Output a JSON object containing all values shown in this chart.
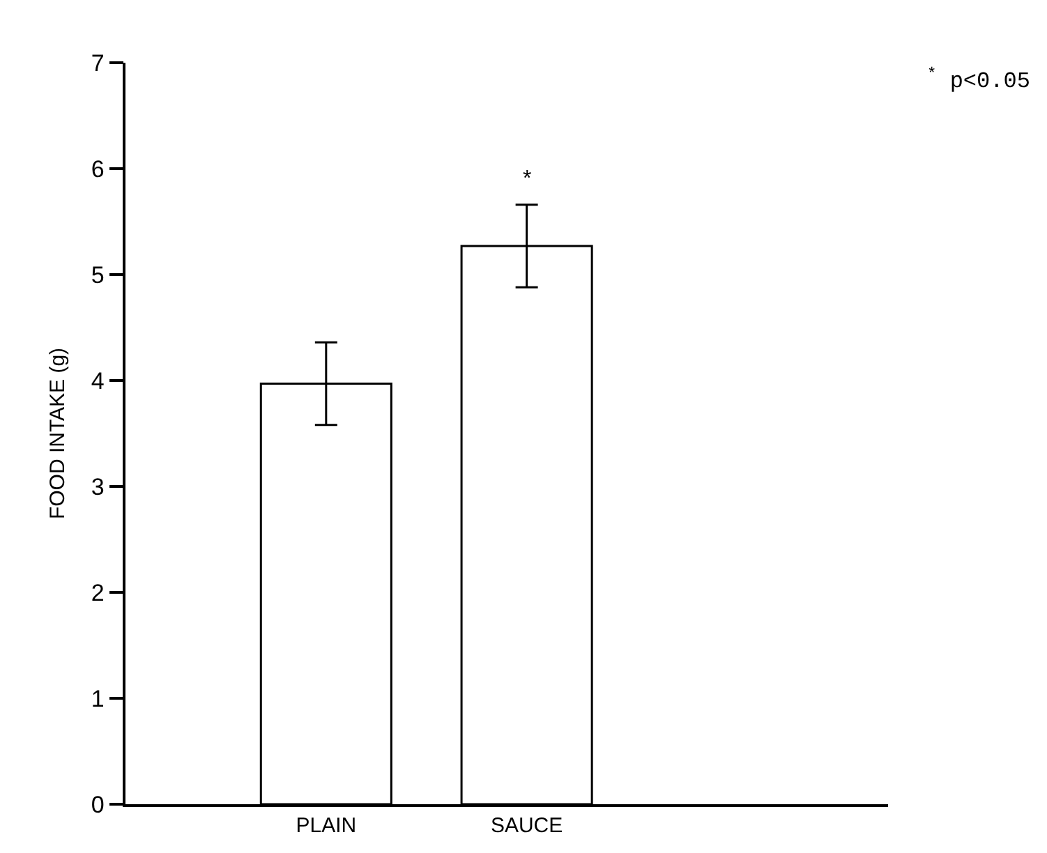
{
  "chart_data": {
    "type": "bar",
    "ylabel": "FOOD INTAKE (g)",
    "categories": [
      "PLAIN",
      "SAUCE"
    ],
    "series": [
      {
        "color": "#ffffff",
        "values": [
          3.97,
          5.27
        ],
        "errors": [
          0.39,
          0.39
        ]
      }
    ],
    "ylim": [
      0,
      7
    ],
    "yticks": [
      0,
      1,
      2,
      3,
      4,
      5,
      6,
      7
    ],
    "annotations": [
      "*",
      "$^{*}$ p<0.05"
    ]
  }
}
